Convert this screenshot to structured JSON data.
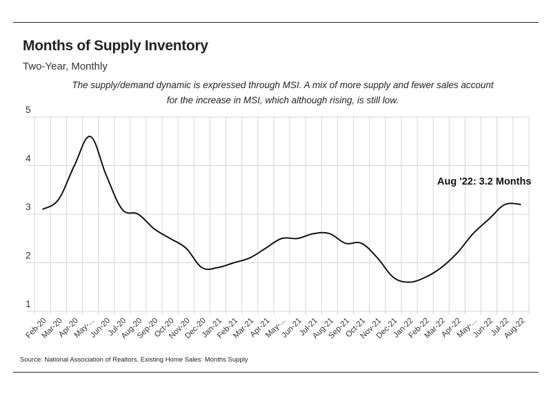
{
  "title": "Months of Supply Inventory",
  "subtitle": "Two-Year, Monthly",
  "note": "The supply/demand dynamic is expressed through MSI. A mix of more supply and fewer sales account for the increase in MSI, which although rising, is still low.",
  "source": "Source:  National Association of Realtors, Existing Home Sales: Months Supply",
  "chart_data": {
    "type": "line",
    "title": "Months of Supply Inventory",
    "xlabel": "",
    "ylabel": "",
    "ylim": [
      1,
      5
    ],
    "yticks": [
      1,
      2,
      3,
      4,
      5
    ],
    "grid": true,
    "categories": [
      "Feb-20",
      "Mar-20",
      "Apr-20",
      "May-...",
      "Jun-20",
      "Jul-20",
      "Aug-20",
      "Sep-20",
      "Oct-20",
      "Nov-20",
      "Dec-20",
      "Jan-21",
      "Feb-21",
      "Mar-21",
      "Apr-21",
      "May-...",
      "Jun-21",
      "Jul-21",
      "Aug-21",
      "Sep-21",
      "Oct-21",
      "Nov-21",
      "Dec-21",
      "Jan-22",
      "Feb-22",
      "Mar-22",
      "Apr-22",
      "May-...",
      "Jun-22",
      "Jul-22",
      "Aug-22"
    ],
    "series": [
      {
        "name": "Months Supply",
        "color": "#111111",
        "values": [
          3.1,
          3.3,
          4.0,
          4.6,
          3.8,
          3.1,
          3.0,
          2.7,
          2.5,
          2.3,
          1.9,
          1.9,
          2.0,
          2.1,
          2.3,
          2.5,
          2.5,
          2.6,
          2.6,
          2.4,
          2.4,
          2.1,
          1.7,
          1.6,
          1.7,
          1.9,
          2.2,
          2.6,
          2.9,
          3.2,
          3.2
        ]
      }
    ],
    "annotation": "Aug '22: 3.2 Months"
  }
}
